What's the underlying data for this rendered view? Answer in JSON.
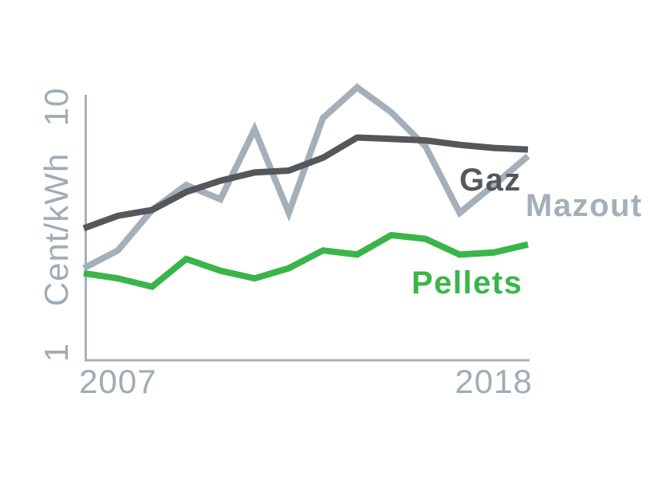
{
  "page": {
    "background": "#ffffff"
  },
  "chart_data": {
    "type": "line",
    "title": "",
    "xlabel": "",
    "ylabel": "Cent/kWh",
    "unit": "Cent/kWh",
    "x_scale": "linear",
    "y_scale": "log",
    "grid": false,
    "legend": "inline-labels-right",
    "x": [
      2006,
      2007,
      2008,
      2009,
      2010,
      2011,
      2012,
      2013,
      2014,
      2015,
      2016,
      2017,
      2018,
      2019
    ],
    "x_tick_years": [
      2007,
      2018
    ],
    "x_tick_labels": [
      "2007",
      "2018"
    ],
    "y_tick_values": [
      1,
      10
    ],
    "y_tick_labels": [
      "1",
      "10"
    ],
    "ylim": [
      1,
      12.6
    ],
    "axis_color": "#a7b1ba",
    "axis_text_color": "#9fadb6",
    "series": [
      {
        "name": "Gaz",
        "color": "#55575a",
        "values": [
          3.2,
          3.6,
          3.8,
          4.5,
          5.0,
          5.4,
          5.5,
          6.2,
          7.5,
          7.4,
          7.3,
          7.0,
          6.8,
          6.7
        ]
      },
      {
        "name": "Mazout",
        "color": "#a4b0b9",
        "values": [
          2.2,
          2.6,
          3.8,
          4.8,
          4.2,
          8.1,
          3.7,
          9.0,
          12.0,
          9.5,
          6.9,
          3.7,
          4.8,
          6.3
        ]
      },
      {
        "name": "Pellets",
        "color": "#3ab54a",
        "values": [
          2.1,
          2.0,
          1.85,
          2.4,
          2.15,
          2.0,
          2.2,
          2.6,
          2.5,
          3.0,
          2.9,
          2.5,
          2.55,
          2.75
        ]
      }
    ]
  }
}
